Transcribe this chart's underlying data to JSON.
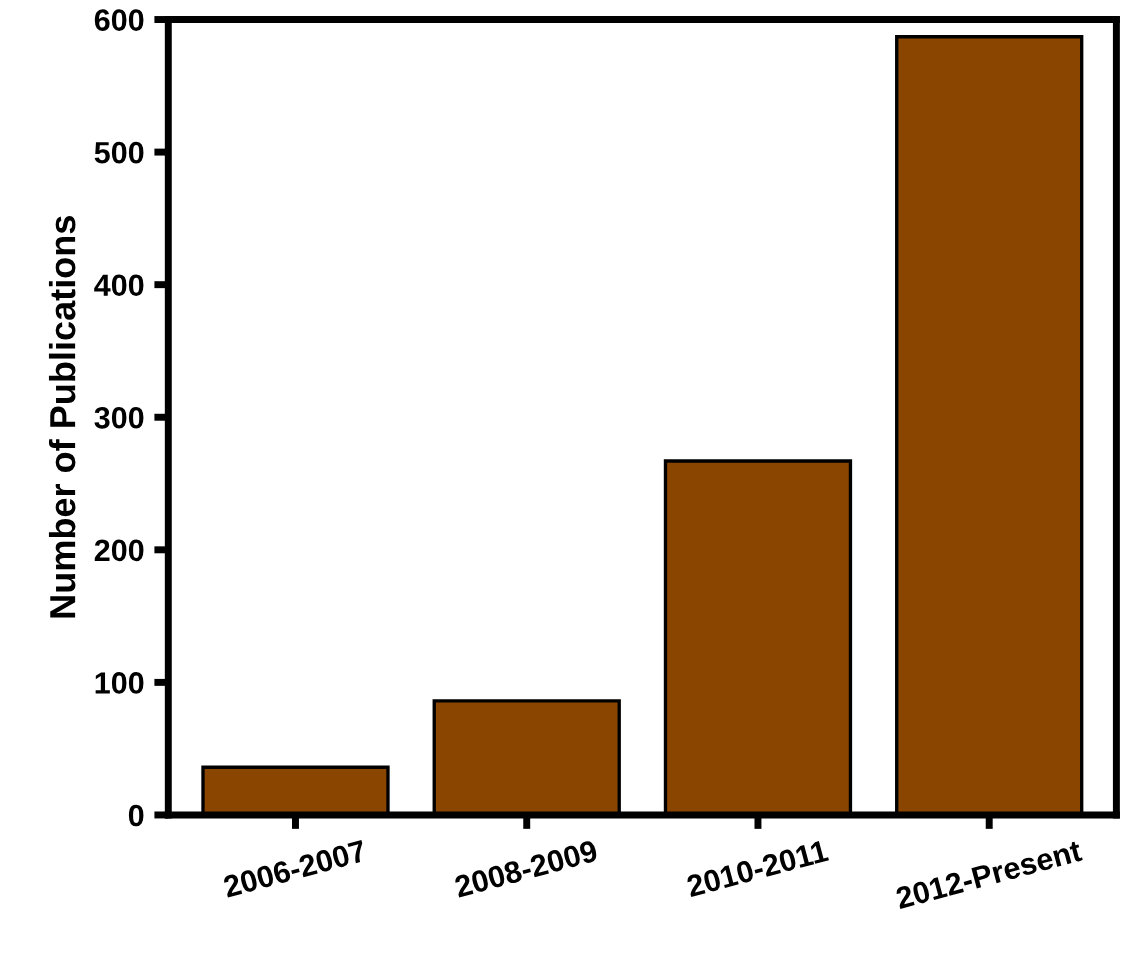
{
  "chart_data": {
    "type": "bar",
    "ylabel": "Number of Publications",
    "categories": [
      "2006-2007",
      "2008-2009",
      "2010-2011",
      "2012-Present"
    ],
    "values": [
      36,
      86,
      267,
      587
    ],
    "color": "#8a4500",
    "ylim": [
      0,
      600
    ],
    "yticks": [
      0,
      100,
      200,
      300,
      400,
      500,
      600
    ],
    "grid": false
  }
}
